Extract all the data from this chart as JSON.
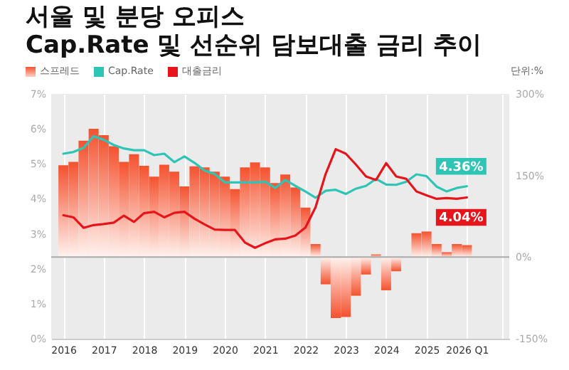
{
  "chart_data": {
    "type": "bar",
    "title": "서울 및 분당 오피스",
    "subtitle": "Cap.Rate 및 선순위 담보대출 금리 추이",
    "annotations": [
      "단위:%"
    ],
    "x": [
      2016.125,
      2016.375,
      2016.625,
      2016.875,
      2017.125,
      2017.375,
      2017.625,
      2017.875,
      2018.125,
      2018.375,
      2018.625,
      2018.875,
      2019.125,
      2019.375,
      2019.625,
      2019.875,
      2020.125,
      2020.375,
      2020.625,
      2020.875,
      2021.125,
      2021.375,
      2021.625,
      2021.875,
      2022.125,
      2022.375,
      2022.625,
      2022.875,
      2023.125,
      2023.375,
      2023.625,
      2023.875,
      2024.125,
      2024.375,
      2024.625,
      2024.875,
      2025.125,
      2025.375,
      2025.625,
      2025.875,
      2026.125
    ],
    "xlim": [
      2016,
      2027
    ],
    "xticks": [
      {
        "value": 2016.125,
        "label": "2016"
      },
      {
        "value": 2017.125,
        "label": "2017"
      },
      {
        "value": 2018.125,
        "label": "2018"
      },
      {
        "value": 2019.125,
        "label": "2019"
      },
      {
        "value": 2020.125,
        "label": "2020"
      },
      {
        "value": 2021.125,
        "label": "2021"
      },
      {
        "value": 2022.125,
        "label": "2022"
      },
      {
        "value": 2023.125,
        "label": "2023"
      },
      {
        "value": 2024.125,
        "label": "2024"
      },
      {
        "value": 2025.125,
        "label": "2025"
      },
      {
        "value": 2026.125,
        "label": "2026 Q1"
      },
      {
        "value": 2027,
        "label": null
      }
    ],
    "ylim": [
      0,
      7
    ],
    "yticks": [
      {
        "value": 0,
        "label": "0%"
      },
      {
        "value": 1,
        "label": "1%"
      },
      {
        "value": 2,
        "label": "2%"
      },
      {
        "value": 3,
        "label": "3%"
      },
      {
        "value": 4,
        "label": "4%"
      },
      {
        "value": 5,
        "label": "5%"
      },
      {
        "value": 6,
        "label": "6%"
      },
      {
        "value": 7,
        "label": "7%"
      }
    ],
    "y2lim": [
      -150,
      300
    ],
    "y2ticks": [
      {
        "value": -150,
        "label": "-150%"
      },
      {
        "value": 0,
        "label": "0%"
      },
      {
        "value": 150,
        "label": "150%"
      },
      {
        "value": 300,
        "label": "300%"
      }
    ],
    "series": [
      {
        "name": "스프레드",
        "axis": "y2",
        "color": "#f4522f",
        "values": [
          169,
          175,
          214,
          236,
          224,
          204,
          175,
          189,
          168,
          148,
          170,
          157,
          130,
          167,
          165,
          157,
          148,
          125,
          165,
          174,
          165,
          136,
          152,
          128,
          91,
          24,
          -50,
          -112,
          -110,
          -71,
          -32,
          5,
          -61,
          -26,
          0,
          44,
          47,
          24,
          9,
          24,
          22
        ]
      },
      {
        "name": "Cap.Rate",
        "type": "line",
        "color": "#2ec4b6",
        "values": [
          5.29,
          5.34,
          5.46,
          5.79,
          5.69,
          5.54,
          5.44,
          5.39,
          5.39,
          5.25,
          5.29,
          5.05,
          5.21,
          5.03,
          4.81,
          4.71,
          4.47,
          4.47,
          4.47,
          4.47,
          4.49,
          4.31,
          4.54,
          4.37,
          4.21,
          4.03,
          4.23,
          4.26,
          4.14,
          4.29,
          4.37,
          4.57,
          4.41,
          4.4,
          4.49,
          4.7,
          4.65,
          4.35,
          4.21,
          4.31,
          4.36
        ],
        "value_labels": [
          null,
          null,
          null,
          null,
          null,
          null,
          null,
          null,
          null,
          null,
          null,
          null,
          null,
          null,
          null,
          null,
          null,
          null,
          null,
          null,
          null,
          null,
          null,
          null,
          null,
          null,
          null,
          null,
          null,
          null,
          null,
          null,
          null,
          null,
          null,
          null,
          null,
          null,
          null,
          null,
          "4.36%"
        ]
      },
      {
        "name": "대출금리",
        "type": "line",
        "color": "#e8141b",
        "values": [
          3.53,
          3.47,
          3.17,
          3.25,
          3.28,
          3.32,
          3.52,
          3.34,
          3.59,
          3.63,
          3.47,
          3.6,
          3.63,
          3.43,
          3.27,
          3.12,
          3.11,
          3.11,
          2.75,
          2.6,
          2.73,
          2.84,
          2.86,
          2.95,
          3.18,
          3.76,
          4.71,
          5.42,
          5.29,
          4.98,
          4.64,
          4.54,
          5.02,
          4.64,
          4.57,
          4.21,
          4.1,
          4.0,
          4.02,
          4.0,
          4.04
        ],
        "value_labels": [
          null,
          null,
          null,
          null,
          null,
          null,
          null,
          null,
          null,
          null,
          null,
          null,
          null,
          null,
          null,
          null,
          null,
          null,
          null,
          null,
          null,
          null,
          null,
          null,
          null,
          null,
          null,
          null,
          null,
          null,
          null,
          null,
          null,
          null,
          null,
          null,
          null,
          null,
          null,
          null,
          "4.04%"
        ]
      }
    ],
    "ref_lines": [
      {
        "axis": "y2",
        "value": 0,
        "color": "#aaaaaa"
      }
    ],
    "grid": "x",
    "legend": "top left"
  }
}
